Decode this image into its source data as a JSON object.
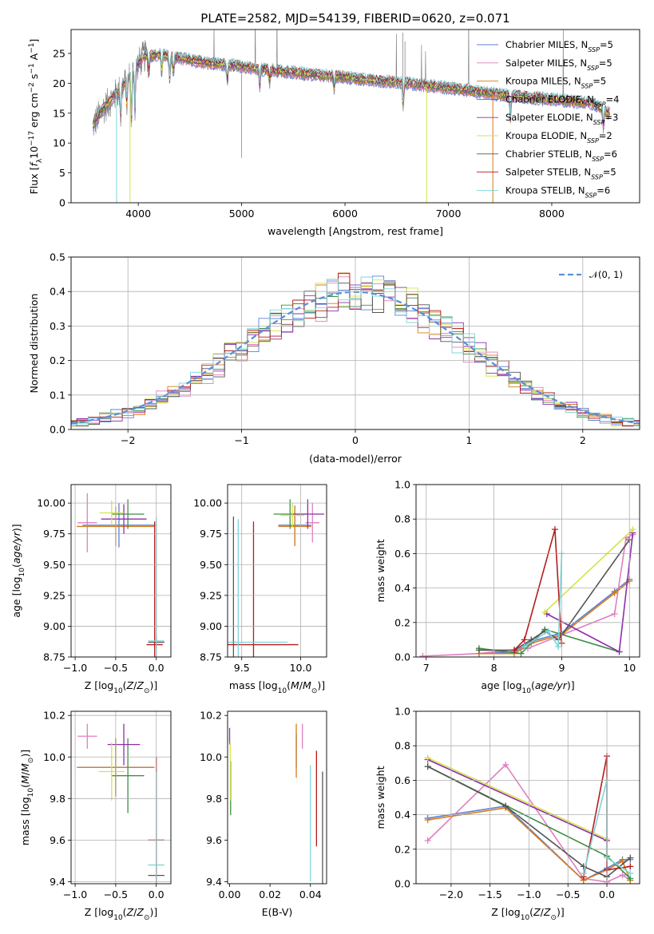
{
  "chart_data": [
    {
      "type": "line",
      "title": "PLATE=2582, MJD=54139, FIBERID=0620, z=0.071",
      "xlabel": "wavelength [Angstrom, rest frame]",
      "ylabel": "Flux [f_λ 10^-17 erg cm^-2 s^-1 A^-1]",
      "xlim": [
        3350,
        8850
      ],
      "ylim": [
        0,
        29
      ],
      "xticks": [
        "4000",
        "5000",
        "6000",
        "7000",
        "8000"
      ],
      "yticks": [
        "0",
        "5",
        "10",
        "15",
        "20",
        "25"
      ],
      "grid": false,
      "legend_position": "top-right",
      "continuum_x": [
        3550,
        3650,
        3750,
        3850,
        3950,
        4050,
        4200,
        4400,
        4600,
        4800,
        5000,
        5200,
        5400,
        5600,
        5800,
        6000,
        6200,
        6400,
        6600,
        6800,
        7000,
        7200,
        7400,
        7600,
        7800,
        8000,
        8200,
        8400,
        8550
      ],
      "continuum_y": [
        12.5,
        15.5,
        17.5,
        19.5,
        22.0,
        24.5,
        24.8,
        24.2,
        23.6,
        23.2,
        22.8,
        22.3,
        22.0,
        21.6,
        21.3,
        21.0,
        20.6,
        20.3,
        20.0,
        19.6,
        19.2,
        18.8,
        18.3,
        17.9,
        17.6,
        17.3,
        17.0,
        16.6,
        15.0
      ],
      "series": [
        {
          "name": "Chabrier MILES, N_SSP=5",
          "name_main": "Chabrier MILES, N",
          "name_sub": "SSP",
          "name_tail": "=5",
          "color": "#5b7fd9"
        },
        {
          "name": "Salpeter MILES, N_SSP=5",
          "name_main": "Salpeter MILES, N",
          "name_sub": "SSP",
          "name_tail": "=5",
          "color": "#e07fbf"
        },
        {
          "name": "Kroupa MILES, N_SSP=5",
          "name_main": "Kroupa MILES, N",
          "name_sub": "SSP",
          "name_tail": "=5",
          "color": "#d47c1a"
        },
        {
          "name": "Chabrier ELODIE, N_SSP=4",
          "name_main": "Chabrier ELODIE, N",
          "name_sub": "SSP",
          "name_tail": "=4",
          "color": "#3d8f44"
        },
        {
          "name": "Salpeter ELODIE, N_SSP=3",
          "name_main": "Salpeter ELODIE, N",
          "name_sub": "SSP",
          "name_tail": "=3",
          "color": "#8e2fa8"
        },
        {
          "name": "Kroupa ELODIE, N_SSP=2",
          "name_main": "Kroupa ELODIE, N",
          "name_sub": "SSP",
          "name_tail": "=2",
          "color": "#d6e34a"
        },
        {
          "name": "Chabrier STELIB, N_SSP=6",
          "name_main": "Chabrier STELIB, N",
          "name_sub": "SSP",
          "name_tail": "=6",
          "color": "#555555"
        },
        {
          "name": "Salpeter STELIB, N_SSP=5",
          "name_main": "Salpeter STELIB, N",
          "name_sub": "SSP",
          "name_tail": "=5",
          "color": "#b51c1c"
        },
        {
          "name": "Kroupa STELIB, N_SSP=6",
          "name_main": "Kroupa STELIB, N",
          "name_sub": "SSP",
          "name_tail": "=6",
          "color": "#7fd4d9"
        }
      ]
    },
    {
      "type": "line",
      "title": "",
      "xlabel": "(data-model)/error",
      "ylabel": "Normed distribution",
      "xlim": [
        -2.5,
        2.5
      ],
      "ylim": [
        0,
        0.5
      ],
      "xticks": [
        "−2",
        "−1",
        "0",
        "1",
        "2"
      ],
      "yticks": [
        "0.0",
        "0.1",
        "0.2",
        "0.3",
        "0.4",
        "0.5"
      ],
      "grid": true,
      "legend_position": "top-right",
      "legend_label": "𝒩(0, 1)",
      "gaussian": {
        "mean": 0,
        "sigma": 1,
        "color": "#5b8fd9"
      },
      "bin_width": 0.1
    },
    {
      "type": "scatter",
      "title": "",
      "xlabel": "Z [log10(Z/Z⊙)]",
      "ylabel": "age [log10(age/yr)]",
      "xlim": [
        -1.05,
        0.18
      ],
      "ylim": [
        8.75,
        10.15
      ],
      "xticks": [
        "−1.0",
        "−0.5",
        "0.0"
      ],
      "yticks": [
        "8.75",
        "9.00",
        "9.25",
        "9.50",
        "9.75",
        "10.00"
      ],
      "grid": true,
      "points": [
        {
          "color": "#5b7fd9",
          "x": -0.46,
          "y": 9.82,
          "xerr": 0.45,
          "yerr": 0.18
        },
        {
          "color": "#e07fbf",
          "x": -0.85,
          "y": 9.84,
          "xerr": 0.12,
          "yerr": 0.24
        },
        {
          "color": "#d47c1a",
          "x": -0.5,
          "y": 9.81,
          "xerr": 0.48,
          "yerr": 0.16
        },
        {
          "color": "#3d8f44",
          "x": -0.35,
          "y": 9.91,
          "xerr": 0.2,
          "yerr": 0.12
        },
        {
          "color": "#8e2fa8",
          "x": -0.4,
          "y": 9.87,
          "xerr": 0.28,
          "yerr": 0.12
        },
        {
          "color": "#d6e34a",
          "x": -0.55,
          "y": 9.92,
          "xerr": 0.15,
          "yerr": 0.1
        },
        {
          "color": "#555555",
          "x": 0.0,
          "y": 8.87,
          "xerr": 0.1,
          "yerr": 0.05
        },
        {
          "color": "#b51c1c",
          "x": -0.02,
          "y": 8.85,
          "xerr": 0.1,
          "yerr": 1.0
        },
        {
          "color": "#7fd4d9",
          "x": 0.0,
          "y": 8.88,
          "xerr": 0.1,
          "yerr": 1.0
        }
      ]
    },
    {
      "type": "scatter",
      "title": "",
      "xlabel": "mass [log10(M/M⊙)]",
      "ylabel": "",
      "xlim": [
        9.38,
        10.22
      ],
      "ylim": [
        8.75,
        10.15
      ],
      "xticks": [
        "9.5",
        "10.0"
      ],
      "yticks": [
        "8.75",
        "9.00",
        "9.25",
        "9.50",
        "9.75",
        "10.00"
      ],
      "grid": true,
      "points": [
        {
          "color": "#5b7fd9",
          "x": 9.95,
          "y": 9.82,
          "xerr": 0.14,
          "yerr": 0.16
        },
        {
          "color": "#e07fbf",
          "x": 10.1,
          "y": 9.84,
          "xerr": 0.06,
          "yerr": 0.16
        },
        {
          "color": "#d47c1a",
          "x": 9.95,
          "y": 9.81,
          "xerr": 0.14,
          "yerr": 0.16
        },
        {
          "color": "#3d8f44",
          "x": 9.91,
          "y": 9.91,
          "xerr": 0.14,
          "yerr": 0.12
        },
        {
          "color": "#8e2fa8",
          "x": 10.06,
          "y": 9.91,
          "xerr": 0.14,
          "yerr": 0.12
        },
        {
          "color": "#d6e34a",
          "x": 9.93,
          "y": 9.9,
          "xerr": 0.1,
          "yerr": 0.1
        },
        {
          "color": "#555555",
          "x": 9.43,
          "y": 8.87,
          "xerr": 0.02,
          "yerr": 1.02
        },
        {
          "color": "#b51c1c",
          "x": 9.6,
          "y": 8.85,
          "xerr": 0.38,
          "yerr": 1.0
        },
        {
          "color": "#7fd4d9",
          "x": 9.47,
          "y": 8.87,
          "xerr": 0.42,
          "yerr": 1.0
        }
      ]
    },
    {
      "type": "line",
      "title": "",
      "xlabel": "age [log10(age/yr)]",
      "ylabel": "mass weight",
      "xlim": [
        6.85,
        10.15
      ],
      "ylim": [
        0,
        1
      ],
      "xticks": [
        "7",
        "8",
        "9",
        "10"
      ],
      "yticks": [
        "0.0",
        "0.2",
        "0.4",
        "0.6",
        "0.8",
        "1.0"
      ],
      "grid": true,
      "series": [
        {
          "name": "Chabrier MILES",
          "color": "#5b7fd9",
          "x": [
            7.78,
            8.3,
            8.55,
            9.0,
            9.78,
            10.0
          ],
          "y": [
            0.02,
            0.03,
            0.09,
            0.14,
            0.38,
            0.45
          ]
        },
        {
          "name": "Salpeter MILES",
          "color": "#e07fbf",
          "x": [
            6.95,
            7.78,
            8.5,
            9.78,
            9.95,
            10.05
          ],
          "y": [
            0.005,
            0.02,
            0.05,
            0.25,
            0.69,
            0.71
          ]
        },
        {
          "name": "Kroupa MILES",
          "color": "#d47c1a",
          "x": [
            7.78,
            8.3,
            8.55,
            9.0,
            9.78,
            10.0
          ],
          "y": [
            0.02,
            0.02,
            0.08,
            0.13,
            0.37,
            0.44
          ]
        },
        {
          "name": "Chabrier ELODIE",
          "color": "#3d8f44",
          "x": [
            7.78,
            8.4,
            8.75,
            9.85
          ],
          "y": [
            0.05,
            0.02,
            0.16,
            0.03
          ]
        },
        {
          "name": "Salpeter ELODIE",
          "color": "#8e2fa8",
          "x": [
            8.78,
            9.85,
            10.05
          ],
          "y": [
            0.25,
            0.03,
            0.72
          ]
        },
        {
          "name": "Kroupa ELODIE",
          "color": "#d6e34a",
          "x": [
            8.75,
            10.05
          ],
          "y": [
            0.26,
            0.74
          ]
        },
        {
          "name": "Chabrier STELIB",
          "color": "#555555",
          "x": [
            7.78,
            8.3,
            8.55,
            8.75,
            8.95,
            10.0
          ],
          "y": [
            0.04,
            0.04,
            0.1,
            0.15,
            0.1,
            0.68
          ]
        },
        {
          "name": "Salpeter STELIB",
          "color": "#b51c1c",
          "x": [
            8.3,
            8.45,
            8.9,
            9.0
          ],
          "y": [
            0.04,
            0.1,
            0.74,
            0.08
          ]
        },
        {
          "name": "Kroupa STELIB",
          "color": "#7fd4d9",
          "x": [
            8.45,
            8.8,
            8.95,
            9.0
          ],
          "y": [
            0.06,
            0.15,
            0.06,
            0.6
          ]
        }
      ]
    },
    {
      "type": "scatter",
      "title": "",
      "xlabel": "Z [log10(Z/Z⊙)]",
      "ylabel": "mass [log10(M/M⊙)]",
      "xlim": [
        -1.05,
        0.18
      ],
      "ylim": [
        9.39,
        10.22
      ],
      "xticks": [
        "−1.0",
        "−0.5",
        "0.0"
      ],
      "yticks": [
        "9.4",
        "9.6",
        "9.8",
        "10.0",
        "10.2"
      ],
      "grid": true,
      "points": [
        {
          "color": "#5b7fd9",
          "x": -0.5,
          "y": 9.95,
          "xerr": 0.46,
          "yerr": 0.14
        },
        {
          "color": "#e07fbf",
          "x": -0.85,
          "y": 10.1,
          "xerr": 0.12,
          "yerr": 0.06
        },
        {
          "color": "#d47c1a",
          "x": -0.5,
          "y": 9.95,
          "xerr": 0.48,
          "yerr": 0.14
        },
        {
          "color": "#3d8f44",
          "x": -0.35,
          "y": 9.91,
          "xerr": 0.2,
          "yerr": 0.18
        },
        {
          "color": "#8e2fa8",
          "x": -0.4,
          "y": 10.06,
          "xerr": 0.2,
          "yerr": 0.1
        },
        {
          "color": "#d6e34a",
          "x": -0.55,
          "y": 9.93,
          "xerr": 0.16,
          "yerr": 0.14
        },
        {
          "color": "#555555",
          "x": 0.0,
          "y": 9.43,
          "xerr": 0.1,
          "yerr": 0.5
        },
        {
          "color": "#b51c1c",
          "x": 0.0,
          "y": 9.6,
          "xerr": 0.1,
          "yerr": 0.4
        },
        {
          "color": "#7fd4d9",
          "x": 0.0,
          "y": 9.48,
          "xerr": 0.1,
          "yerr": 0.45
        }
      ]
    },
    {
      "type": "scatter",
      "title": "",
      "xlabel": "E(B-V)",
      "ylabel": "",
      "xlim": [
        -0.001,
        0.048
      ],
      "ylim": [
        9.39,
        10.22
      ],
      "xticks": [
        "0.00",
        "0.02",
        "0.04"
      ],
      "yticks": [
        "9.4",
        "9.6",
        "9.8",
        "10.0",
        "10.2"
      ],
      "grid": false,
      "points": [
        {
          "color": "#5b7fd9",
          "x": 0.033,
          "y": 10.03,
          "yerr": 0.08
        },
        {
          "color": "#e07fbf",
          "x": 0.036,
          "y": 10.1,
          "yerr": 0.06
        },
        {
          "color": "#d47c1a",
          "x": 0.033,
          "y": 10.03,
          "yerr": 0.13
        },
        {
          "color": "#3d8f44",
          "x": 0.0005,
          "y": 9.85,
          "yerr": 0.13
        },
        {
          "color": "#8e2fa8",
          "x": 0.0,
          "y": 10.1,
          "yerr": 0.04
        },
        {
          "color": "#d6e34a",
          "x": 0.0003,
          "y": 9.93,
          "yerr": 0.14
        },
        {
          "color": "#555555",
          "x": 0.046,
          "y": 9.43,
          "yerr": 0.5
        },
        {
          "color": "#b51c1c",
          "x": 0.043,
          "y": 9.8,
          "yerr": 0.23
        },
        {
          "color": "#7fd4d9",
          "x": 0.04,
          "y": 9.68,
          "yerr": 0.28
        }
      ]
    },
    {
      "type": "line",
      "title": "",
      "xlabel": "Z [log10(Z/Z⊙)]",
      "ylabel": "mass weight",
      "xlim": [
        -2.45,
        0.42
      ],
      "ylim": [
        0,
        1
      ],
      "xticks": [
        "−2.0",
        "−1.5",
        "−1.0",
        "−0.5",
        "0.0"
      ],
      "yticks": [
        "0.0",
        "0.2",
        "0.4",
        "0.6",
        "0.8",
        "1.0"
      ],
      "grid": true,
      "series": [
        {
          "name": "Chabrier MILES",
          "color": "#5b7fd9",
          "x": [
            -2.3,
            -1.3,
            -0.3,
            0.0,
            0.2,
            0.3
          ],
          "y": [
            0.38,
            0.45,
            0.02,
            0.09,
            0.14,
            0.14
          ]
        },
        {
          "name": "Salpeter MILES",
          "color": "#e07fbf",
          "x": [
            -2.3,
            -1.3,
            -0.3,
            0.0,
            0.2,
            0.3
          ],
          "y": [
            0.25,
            0.69,
            0.03,
            0.01,
            0.05,
            0.02
          ]
        },
        {
          "name": "Kroupa MILES",
          "color": "#d47c1a",
          "x": [
            -2.3,
            -1.3,
            -0.3,
            0.0,
            0.2,
            0.3
          ],
          "y": [
            0.37,
            0.44,
            0.02,
            0.08,
            0.13,
            0.02
          ]
        },
        {
          "name": "Chabrier ELODIE",
          "color": "#3d8f44",
          "x": [
            -2.3,
            0.0,
            0.3
          ],
          "y": [
            0.68,
            0.16,
            0.03
          ]
        },
        {
          "name": "Salpeter ELODIE",
          "color": "#8e2fa8",
          "x": [
            -2.3,
            0.0
          ],
          "y": [
            0.72,
            0.25
          ]
        },
        {
          "name": "Kroupa ELODIE",
          "color": "#d6e34a",
          "x": [
            -2.3,
            0.0
          ],
          "y": [
            0.73,
            0.26
          ]
        },
        {
          "name": "Chabrier STELIB",
          "color": "#555555",
          "x": [
            -2.3,
            -1.3,
            -0.3,
            0.0,
            0.3
          ],
          "y": [
            0.68,
            0.45,
            0.1,
            0.04,
            0.15
          ]
        },
        {
          "name": "Salpeter STELIB",
          "color": "#b51c1c",
          "x": [
            -0.3,
            0.0,
            0.0,
            0.3
          ],
          "y": [
            0.04,
            0.74,
            0.08,
            0.1
          ]
        },
        {
          "name": "Kroupa STELIB",
          "color": "#7fd4d9",
          "x": [
            -0.3,
            0.0,
            0.0,
            0.3
          ],
          "y": [
            0.06,
            0.6,
            0.15,
            0.06
          ]
        }
      ]
    }
  ]
}
